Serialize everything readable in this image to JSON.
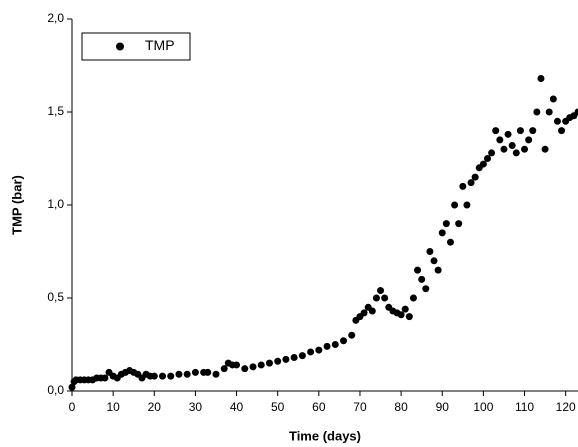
{
  "chart_data": {
    "type": "scatter",
    "xlabel": "Time (days)",
    "ylabel": "TMP (bar)",
    "x": [
      0,
      0.5,
      1,
      2,
      3,
      4,
      5,
      6,
      7,
      8,
      9,
      10,
      11,
      12,
      13,
      14,
      15,
      16,
      17,
      18,
      19,
      20,
      22,
      24,
      26,
      28,
      30,
      32,
      33,
      35,
      37,
      38,
      39,
      40,
      42,
      44,
      46,
      48,
      50,
      52,
      54,
      56,
      58,
      60,
      62,
      64,
      66,
      68,
      69,
      70,
      71,
      72,
      73,
      74,
      75,
      76,
      77,
      78,
      79,
      80,
      81,
      82,
      83,
      84,
      85,
      86,
      87,
      88,
      89,
      90,
      91,
      92,
      93,
      94,
      95,
      96,
      97,
      98,
      99,
      100,
      101,
      102,
      103,
      104,
      105,
      106,
      107,
      108,
      109,
      110,
      111,
      112,
      113,
      114,
      115,
      116,
      117,
      118,
      119,
      120,
      121,
      122,
      123
    ],
    "series": [
      {
        "name": "TMP",
        "color": "#000000",
        "values": [
          0.02,
          0.05,
          0.06,
          0.06,
          0.06,
          0.06,
          0.06,
          0.07,
          0.07,
          0.07,
          0.1,
          0.08,
          0.07,
          0.09,
          0.1,
          0.11,
          0.1,
          0.09,
          0.07,
          0.09,
          0.08,
          0.08,
          0.08,
          0.08,
          0.09,
          0.09,
          0.1,
          0.1,
          0.1,
          0.09,
          0.12,
          0.15,
          0.14,
          0.14,
          0.12,
          0.13,
          0.14,
          0.15,
          0.16,
          0.17,
          0.18,
          0.19,
          0.21,
          0.22,
          0.24,
          0.25,
          0.27,
          0.3,
          0.38,
          0.4,
          0.42,
          0.45,
          0.43,
          0.5,
          0.54,
          0.5,
          0.45,
          0.43,
          0.42,
          0.41,
          0.44,
          0.4,
          0.5,
          0.65,
          0.6,
          0.55,
          0.75,
          0.7,
          0.65,
          0.85,
          0.9,
          0.8,
          1.0,
          0.9,
          1.1,
          1.0,
          1.12,
          1.15,
          1.2,
          1.22,
          1.25,
          1.28,
          1.4,
          1.35,
          1.3,
          1.38,
          1.32,
          1.28,
          1.4,
          1.3,
          1.35,
          1.4,
          1.5,
          1.68,
          1.3,
          1.5,
          1.57,
          1.45,
          1.4,
          1.45,
          1.47,
          1.48,
          1.5
        ]
      }
    ],
    "xlim": [
      0,
      123
    ],
    "xticks": [
      0,
      10,
      20,
      30,
      40,
      50,
      60,
      70,
      80,
      90,
      100,
      110,
      120
    ],
    "ylim": [
      0,
      2
    ],
    "yticks": [
      {
        "value": 0,
        "label": "0,0"
      },
      {
        "value": 0.5,
        "label": "0,5"
      },
      {
        "value": 1,
        "label": "1,0"
      },
      {
        "value": 1.5,
        "label": "1,5"
      },
      {
        "value": 2,
        "label": "2,0"
      }
    ],
    "legend": "top-left"
  }
}
